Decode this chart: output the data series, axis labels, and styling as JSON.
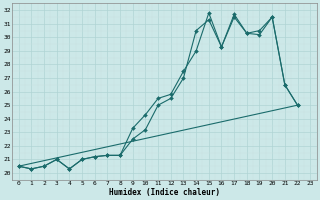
{
  "xlabel": "Humidex (Indice chaleur)",
  "bg_color": "#cce8e8",
  "grid_color": "#aacccc",
  "line_color": "#1a6b6b",
  "xlim": [
    -0.5,
    23.5
  ],
  "ylim": [
    19.5,
    32.5
  ],
  "xticks": [
    0,
    1,
    2,
    3,
    4,
    5,
    6,
    7,
    8,
    9,
    10,
    11,
    12,
    13,
    14,
    15,
    16,
    17,
    18,
    19,
    20,
    21,
    22,
    23
  ],
  "yticks": [
    20,
    21,
    22,
    23,
    24,
    25,
    26,
    27,
    28,
    29,
    30,
    31,
    32
  ],
  "line1_x": [
    0,
    1,
    2,
    3,
    4,
    5,
    6,
    7,
    8,
    9,
    10,
    11,
    12,
    13,
    14,
    15,
    16,
    17,
    18,
    19,
    20,
    21,
    22
  ],
  "line1_y": [
    20.5,
    20.3,
    20.5,
    21.0,
    20.3,
    21.0,
    21.2,
    21.3,
    21.3,
    22.5,
    23.2,
    25.0,
    25.5,
    27.0,
    30.5,
    31.3,
    29.3,
    31.5,
    30.3,
    30.2,
    31.5,
    26.5,
    25.0
  ],
  "line2_x": [
    0,
    1,
    2,
    3,
    4,
    5,
    6,
    7,
    8,
    9,
    10,
    11,
    12,
    13,
    14,
    15,
    16,
    17,
    18,
    19,
    20,
    21,
    22
  ],
  "line2_y": [
    20.5,
    20.3,
    20.5,
    21.0,
    20.3,
    21.0,
    21.2,
    21.3,
    21.3,
    23.3,
    24.3,
    25.5,
    25.8,
    27.5,
    29.0,
    31.8,
    29.3,
    31.7,
    30.3,
    30.5,
    31.5,
    26.5,
    25.0
  ],
  "line3_x": [
    0,
    22
  ],
  "line3_y": [
    20.5,
    25.0
  ],
  "markersize": 2.0
}
